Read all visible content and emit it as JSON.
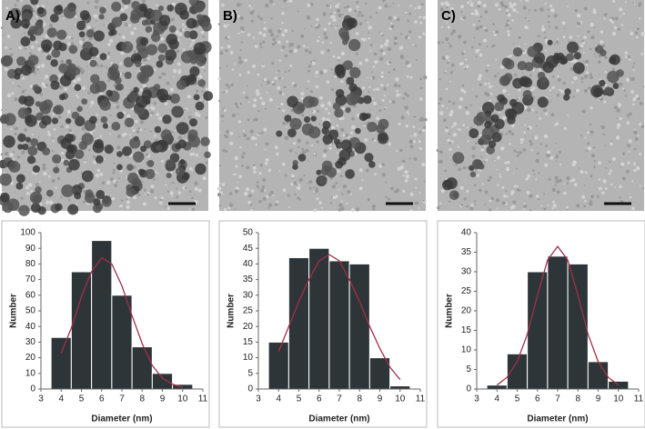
{
  "chart_data": [
    {
      "type": "histogram",
      "panel_label": "A)",
      "xlabel": "Diameter (nm)",
      "ylabel": "Number",
      "color": "#2e3538",
      "bins": [
        3.5,
        4.5,
        5.5,
        6.5,
        7.5,
        8.5,
        9.5,
        10.5
      ],
      "values": [
        33,
        75,
        95,
        60,
        27,
        10,
        3
      ],
      "xlim": [
        3,
        11
      ],
      "xticks": [
        3,
        4,
        5,
        6,
        7,
        8,
        9,
        10,
        11
      ],
      "ylim": [
        0,
        100
      ],
      "yticks": [
        0,
        10,
        20,
        30,
        40,
        50,
        60,
        70,
        80,
        90,
        100
      ],
      "fit": {
        "color": "#a0304a",
        "x": [
          4,
          4.5,
          5,
          5.5,
          6,
          6.5,
          7,
          7.5,
          8,
          8.5,
          9,
          9.5,
          10
        ],
        "values": [
          23,
          39,
          59,
          75,
          84,
          80,
          66,
          47,
          29,
          15,
          7,
          3,
          1
        ]
      }
    },
    {
      "type": "histogram",
      "panel_label": "B)",
      "xlabel": "Diameter (nm)",
      "ylabel": "Number",
      "color": "#2e3538",
      "bins": [
        3.5,
        4.5,
        5.5,
        6.5,
        7.5,
        8.5,
        9.5,
        10.5
      ],
      "values": [
        15,
        42,
        45,
        41,
        40,
        10,
        1
      ],
      "xlim": [
        3,
        11
      ],
      "xticks": [
        3,
        4,
        5,
        6,
        7,
        8,
        9,
        10,
        11
      ],
      "ylim": [
        0,
        50
      ],
      "yticks": [
        0,
        5,
        10,
        15,
        20,
        25,
        30,
        35,
        40,
        45,
        50
      ],
      "fit": {
        "color": "#a0304a",
        "x": [
          4,
          4.5,
          5,
          5.5,
          6,
          6.5,
          7,
          7.5,
          8,
          8.5,
          9,
          9.5,
          10
        ],
        "values": [
          12,
          20,
          28,
          35,
          41,
          43,
          41,
          35,
          28,
          20,
          13,
          7,
          3
        ]
      }
    },
    {
      "type": "histogram",
      "panel_label": "C)",
      "xlabel": "Diameter (nm)",
      "ylabel": "Number",
      "color": "#2e3538",
      "bins": [
        3.5,
        4.5,
        5.5,
        6.5,
        7.5,
        8.5,
        9.5,
        10.5
      ],
      "values": [
        1,
        9,
        30,
        34,
        32,
        7,
        2
      ],
      "xlim": [
        3,
        11
      ],
      "xticks": [
        3,
        4,
        5,
        6,
        7,
        8,
        9,
        10,
        11
      ],
      "ylim": [
        0,
        40
      ],
      "yticks": [
        0,
        5,
        10,
        15,
        20,
        25,
        30,
        35,
        40
      ],
      "fit": {
        "color": "#a0304a",
        "x": [
          4,
          4.5,
          5,
          5.5,
          6,
          6.5,
          7,
          7.5,
          8,
          8.5,
          9,
          9.5,
          10
        ],
        "values": [
          1,
          3,
          7,
          14,
          24,
          33,
          36.5,
          33,
          24,
          14,
          7,
          3,
          1
        ]
      }
    }
  ]
}
